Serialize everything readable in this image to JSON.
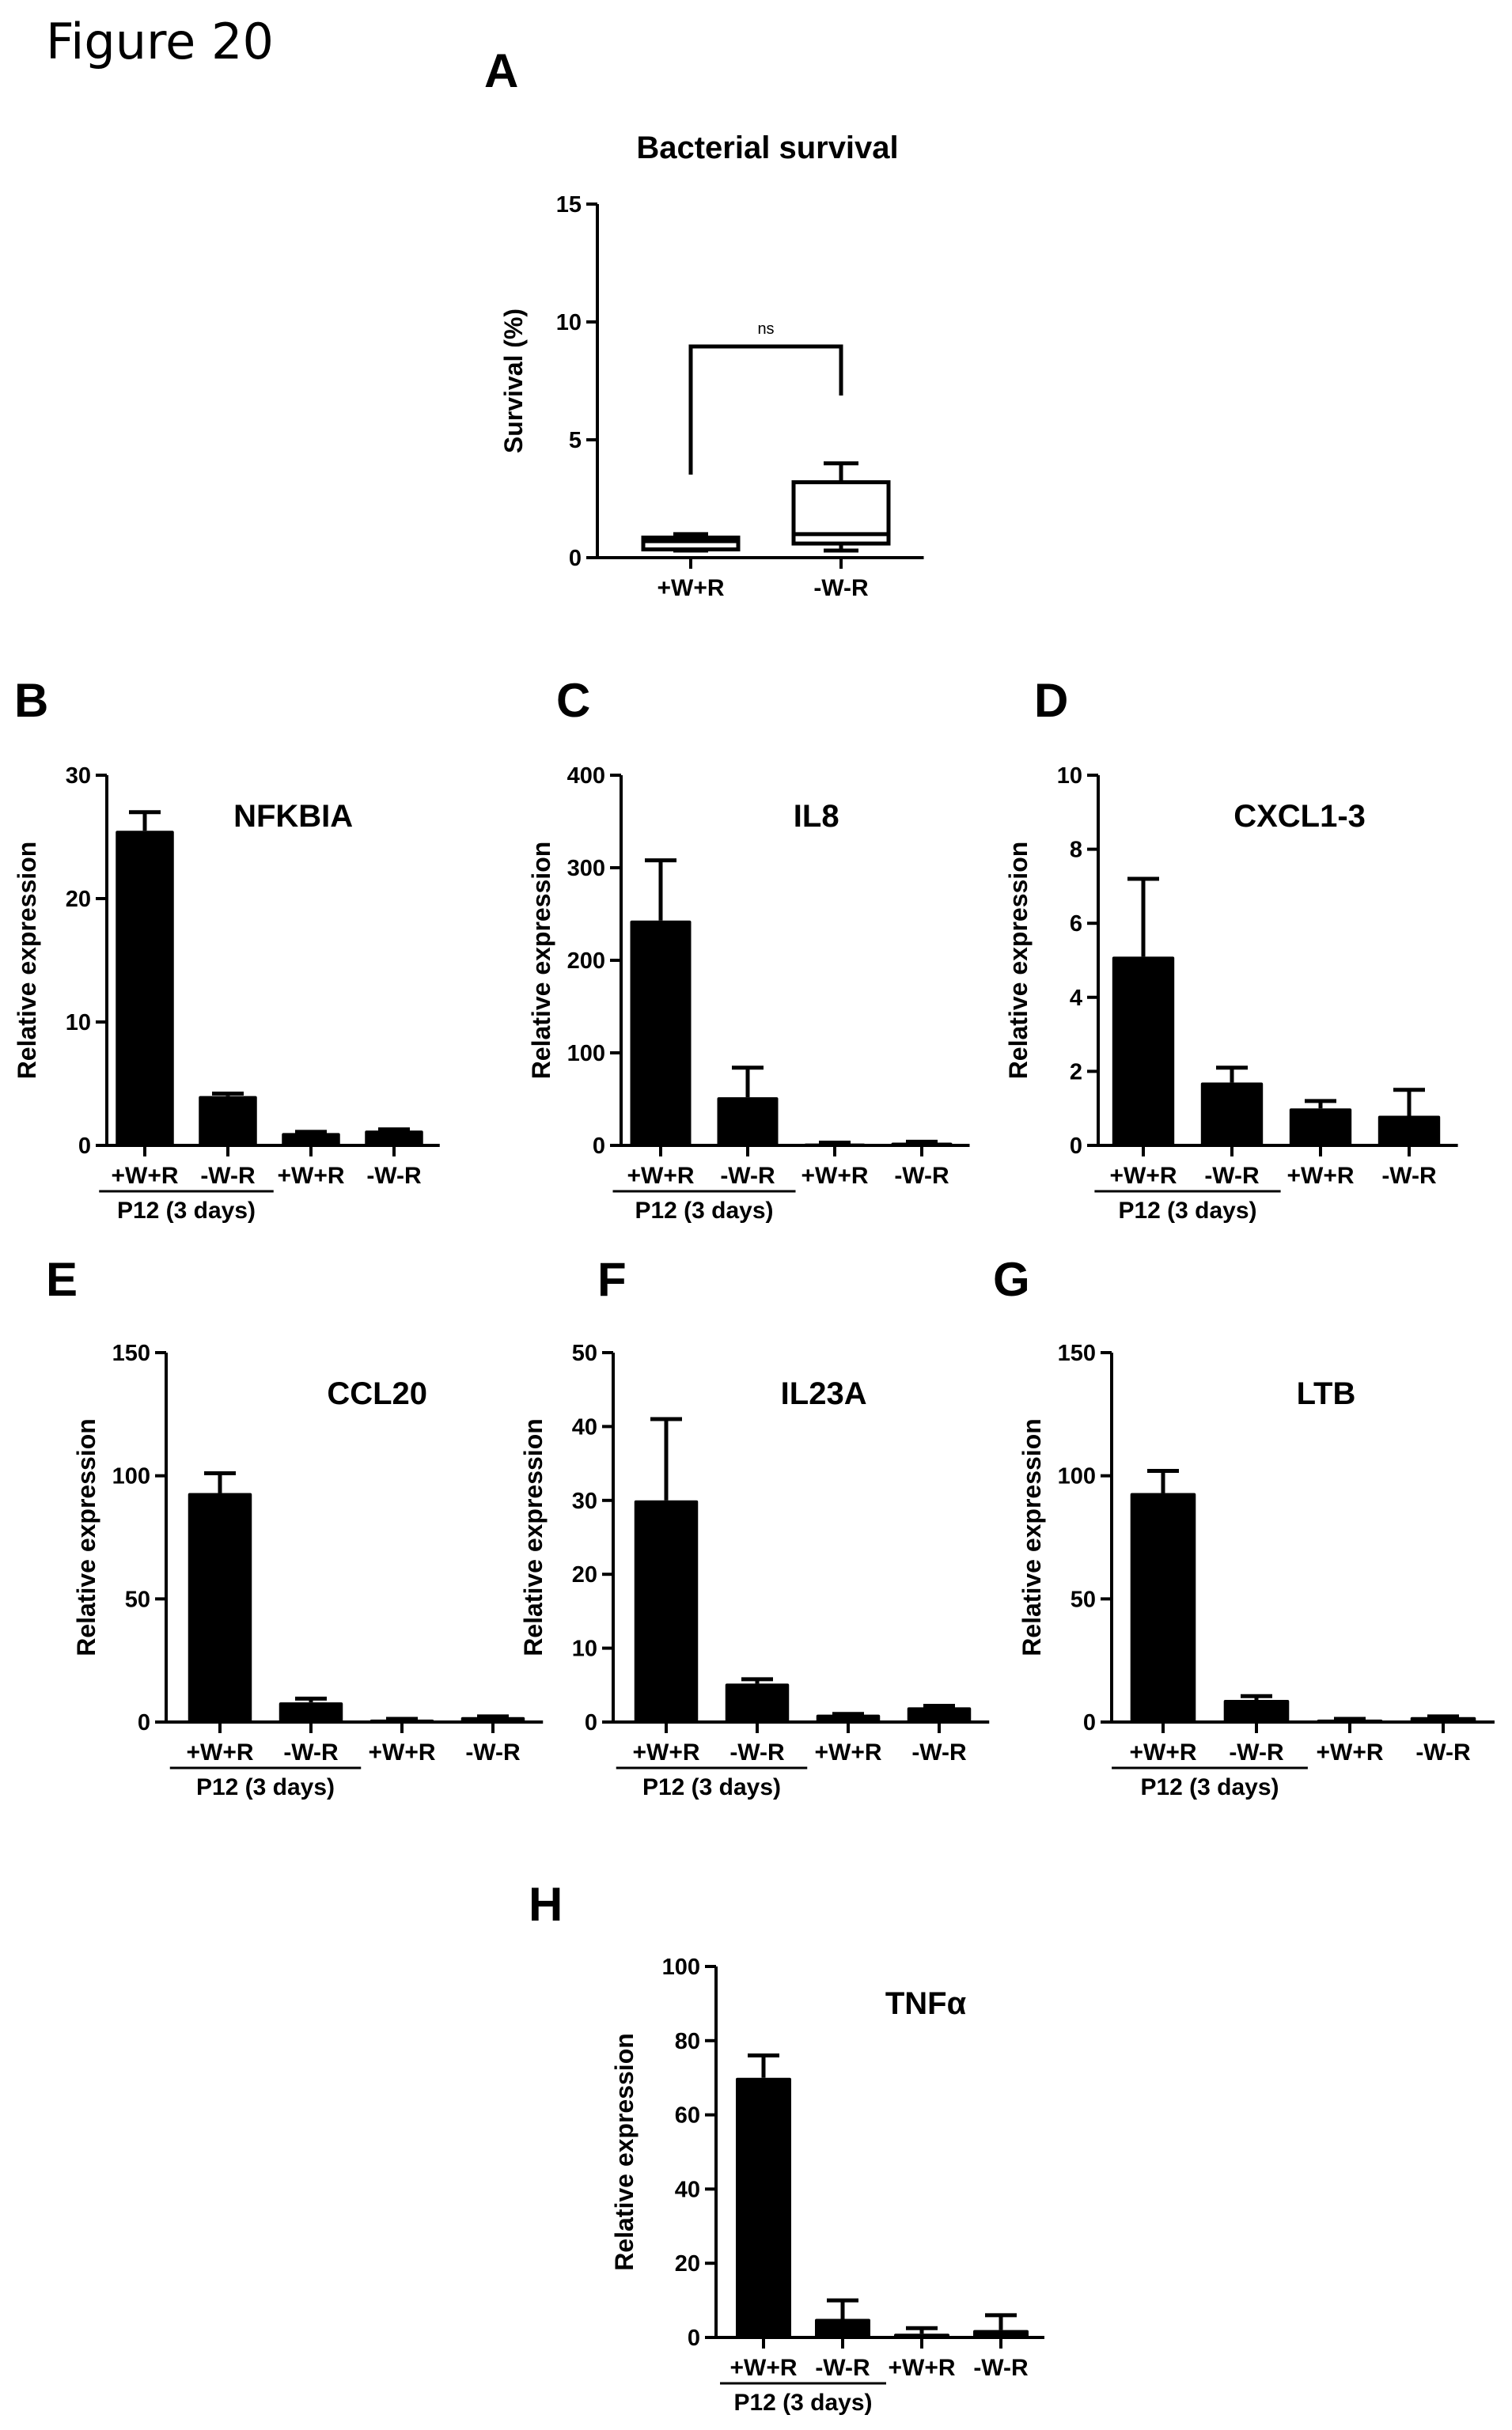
{
  "figure": {
    "title": "Figure 20"
  },
  "chart_data": [
    {
      "panel": "A",
      "type": "box",
      "title": "Bacterial survival",
      "ylabel": "Survival (%)",
      "ylim": [
        0,
        15
      ],
      "yticks": [
        0,
        5,
        10,
        15
      ],
      "categories": [
        "+W+R",
        "-W-R"
      ],
      "boxes": [
        {
          "min": 0.3,
          "q1": 0.35,
          "median": 0.7,
          "q3": 0.85,
          "max": 1.0
        },
        {
          "min": 0.3,
          "q1": 0.6,
          "median": 1.0,
          "q3": 3.2,
          "max": 4.0
        }
      ],
      "annotation": "ns"
    },
    {
      "panel": "B",
      "type": "bar",
      "title": "NFKBIA",
      "ylabel": "Relative expression",
      "ylim": [
        0,
        30
      ],
      "yticks": [
        0,
        10,
        20,
        30
      ],
      "categories": [
        "+W+R",
        "-W-R",
        "+W+R",
        "-W-R"
      ],
      "values": [
        25.5,
        4.0,
        1.0,
        1.2
      ],
      "errors": [
        1.5,
        0.2,
        0.1,
        0.1
      ],
      "group_label": "P12 (3 days)"
    },
    {
      "panel": "C",
      "type": "bar",
      "title": "IL8",
      "ylabel": "Relative expression",
      "ylim": [
        0,
        400
      ],
      "yticks": [
        0,
        100,
        200,
        300,
        400
      ],
      "categories": [
        "+W+R",
        "-W-R",
        "+W+R",
        "-W-R"
      ],
      "values": [
        243,
        52,
        2,
        3
      ],
      "errors": [
        65,
        32,
        1,
        1
      ],
      "group_label": "P12 (3 days)"
    },
    {
      "panel": "D",
      "type": "bar",
      "title": "CXCL1-3",
      "ylabel": "Relative expression",
      "ylim": [
        0,
        10
      ],
      "yticks": [
        0,
        2,
        4,
        6,
        8,
        10
      ],
      "categories": [
        "+W+R",
        "-W-R",
        "+W+R",
        "-W-R"
      ],
      "values": [
        5.1,
        1.7,
        1.0,
        0.8
      ],
      "errors": [
        2.1,
        0.4,
        0.2,
        0.7
      ],
      "group_label": "P12 (3 days)"
    },
    {
      "panel": "E",
      "type": "bar",
      "title": "CCL20",
      "ylabel": "Relative expression",
      "ylim": [
        0,
        150
      ],
      "yticks": [
        0,
        50,
        100,
        150
      ],
      "categories": [
        "+W+R",
        "-W-R",
        "+W+R",
        "-W-R"
      ],
      "values": [
        93,
        8,
        1,
        2
      ],
      "errors": [
        8,
        1.5,
        0.3,
        0.3
      ],
      "group_label": "P12 (3 days)"
    },
    {
      "panel": "F",
      "type": "bar",
      "title": "IL23A",
      "ylabel": "Relative expression",
      "ylim": [
        0,
        50
      ],
      "yticks": [
        0,
        10,
        20,
        30,
        40,
        50
      ],
      "categories": [
        "+W+R",
        "-W-R",
        "+W+R",
        "-W-R"
      ],
      "values": [
        30,
        5.2,
        1.0,
        2.0
      ],
      "errors": [
        11,
        0.6,
        0.1,
        0.2
      ],
      "group_label": "P12 (3 days)"
    },
    {
      "panel": "G",
      "type": "bar",
      "title": "LTB",
      "ylabel": "Relative expression",
      "ylim": [
        0,
        150
      ],
      "yticks": [
        0,
        50,
        100,
        150
      ],
      "categories": [
        "+W+R",
        "-W-R",
        "+W+R",
        "-W-R"
      ],
      "values": [
        93,
        9,
        1,
        2
      ],
      "errors": [
        9,
        1.5,
        0.3,
        0.3
      ],
      "group_label": "P12 (3 days)"
    },
    {
      "panel": "H",
      "type": "bar",
      "title": "TNFα",
      "ylabel": "Relative expression",
      "ylim": [
        0,
        100
      ],
      "yticks": [
        0,
        20,
        40,
        60,
        80,
        100
      ],
      "categories": [
        "+W+R",
        "-W-R",
        "+W+R",
        "-W-R"
      ],
      "values": [
        70,
        5,
        1,
        2
      ],
      "errors": [
        6,
        5,
        1.5,
        4
      ],
      "group_label": "P12 (3 days)"
    }
  ]
}
